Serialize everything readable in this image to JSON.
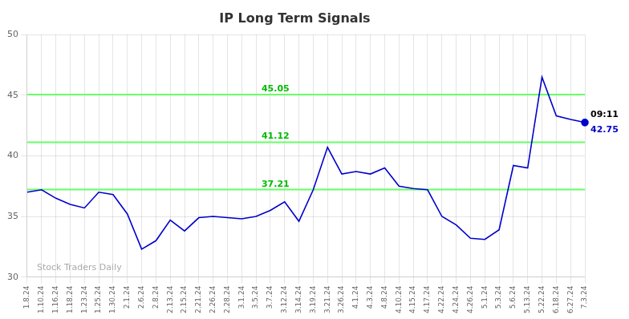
{
  "chart_data": {
    "type": "line",
    "title": "IP Long Term Signals",
    "categories": [
      "1.8.24",
      "1.10.24",
      "1.16.24",
      "1.18.24",
      "1.23.24",
      "1.25.24",
      "1.30.24",
      "2.1.24",
      "2.6.24",
      "2.8.24",
      "2.13.24",
      "2.15.24",
      "2.21.24",
      "2.26.24",
      "2.28.24",
      "3.1.24",
      "3.5.24",
      "3.7.24",
      "3.12.24",
      "3.14.24",
      "3.19.24",
      "3.21.24",
      "3.26.24",
      "4.1.24",
      "4.3.24",
      "4.8.24",
      "4.10.24",
      "4.15.24",
      "4.17.24",
      "4.22.24",
      "4.24.24",
      "4.26.24",
      "5.1.24",
      "5.3.24",
      "5.6.24",
      "5.13.24",
      "5.22.24",
      "6.18.24",
      "6.27.24",
      "7.3.24"
    ],
    "values": [
      37.0,
      37.2,
      36.5,
      36.0,
      35.7,
      37.0,
      36.8,
      35.2,
      32.3,
      33.0,
      34.7,
      33.8,
      34.9,
      35.0,
      34.9,
      34.8,
      35.0,
      35.5,
      36.2,
      34.6,
      37.2,
      40.7,
      38.5,
      38.7,
      38.5,
      39.0,
      37.5,
      37.3,
      37.2,
      35.0,
      34.3,
      33.2,
      33.1,
      33.9,
      39.2,
      39.0,
      46.5,
      43.3,
      43.0,
      42.75
    ],
    "color": "#0000cc",
    "ylim": [
      30,
      50
    ],
    "yticks": [
      30,
      35,
      40,
      45,
      50
    ],
    "grid": true,
    "hlines": [
      {
        "value": 37.21,
        "label": "37.21",
        "color": "#66ff66",
        "label_color": "#00bb00"
      },
      {
        "value": 41.12,
        "label": "41.12",
        "color": "#66ff66",
        "label_color": "#00bb00"
      },
      {
        "value": 45.05,
        "label": "45.05",
        "color": "#66ff66",
        "label_color": "#00bb00"
      }
    ],
    "annotations": [
      {
        "text": "09:11",
        "x": "7.3.24",
        "y": 42.75,
        "color": "#000000"
      },
      {
        "text": "42.75",
        "x": "7.3.24",
        "y": 42.75,
        "color": "#0000cc"
      },
      {
        "text": "Stock Traders Daily",
        "color": "#aaaaaa"
      }
    ]
  }
}
